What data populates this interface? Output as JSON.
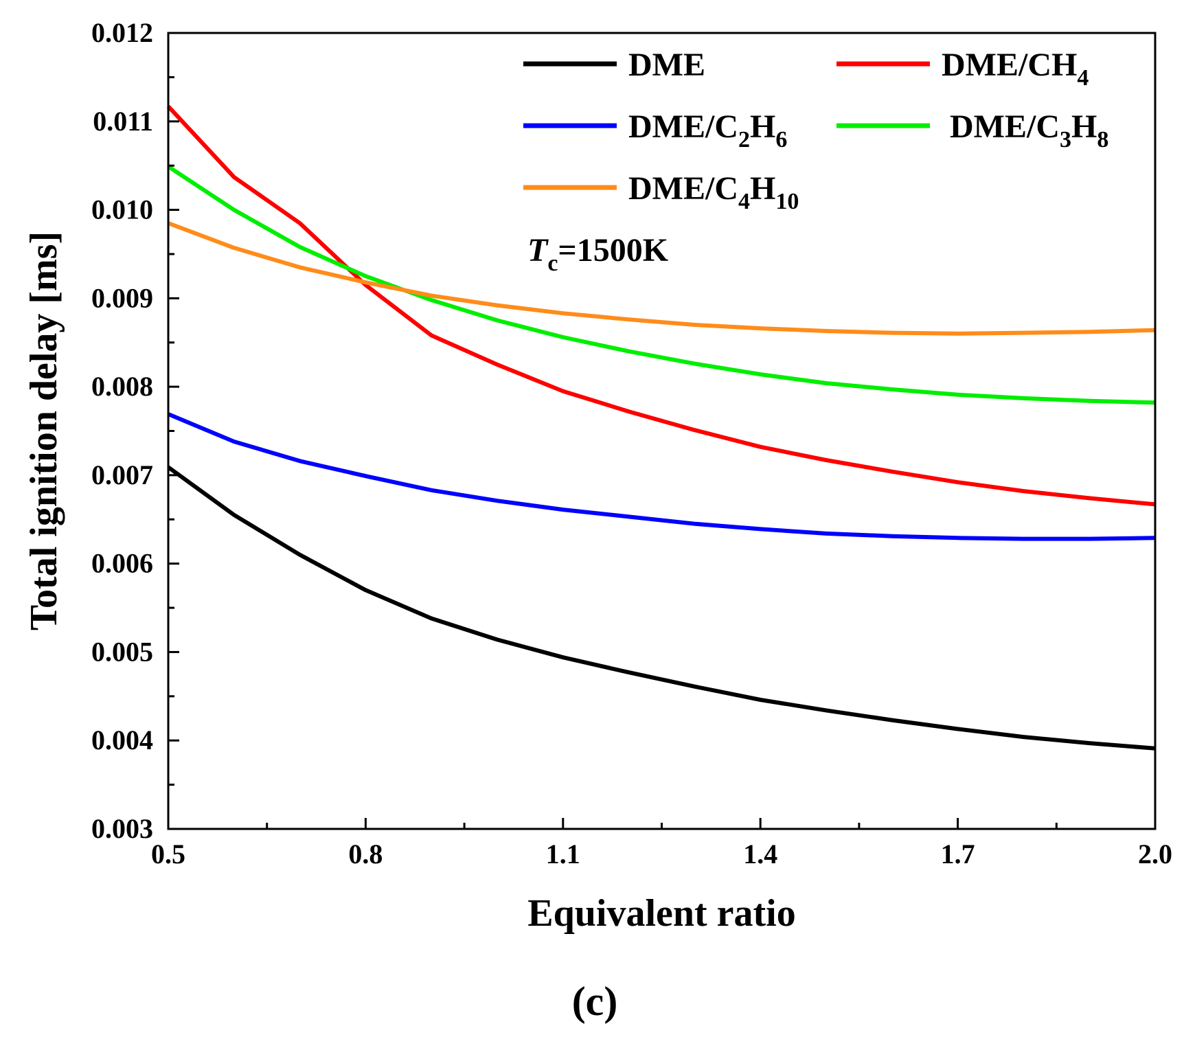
{
  "chart_data": {
    "type": "line",
    "panel_label": "(c)",
    "xlabel": "Equivalent ratio",
    "ylabel": "Total ignition delay [ms]",
    "xlim": [
      0.5,
      2.0
    ],
    "ylim": [
      0.003,
      0.012
    ],
    "x_ticks": [
      0.5,
      0.8,
      1.1,
      1.4,
      1.7,
      2.0
    ],
    "x_tick_labels": [
      "0.5",
      "0.8",
      "1.1",
      "1.4",
      "1.7",
      "2.0"
    ],
    "y_ticks": [
      0.003,
      0.004,
      0.005,
      0.006,
      0.007,
      0.008,
      0.009,
      0.01,
      0.011,
      0.012
    ],
    "y_tick_labels": [
      "0.003",
      "0.004",
      "0.005",
      "0.006",
      "0.007",
      "0.008",
      "0.009",
      "0.010",
      "0.011",
      "0.012"
    ],
    "grid": false,
    "legend_position": "top-right",
    "annotation": {
      "italic": "T",
      "subscript": "c",
      "rest": "=1500K"
    },
    "series": [
      {
        "name": "DME",
        "label": {
          "parts": [
            {
              "t": "DME"
            }
          ]
        },
        "color": "#000000",
        "x": [
          0.5,
          0.6,
          0.7,
          0.8,
          0.9,
          1.0,
          1.1,
          1.2,
          1.3,
          1.4,
          1.5,
          1.6,
          1.7,
          1.8,
          1.9,
          2.0
        ],
        "values": [
          0.00709,
          0.00655,
          0.0061,
          0.0057,
          0.00538,
          0.00514,
          0.00494,
          0.00477,
          0.00461,
          0.00446,
          0.00434,
          0.00423,
          0.00413,
          0.00404,
          0.00397,
          0.00391
        ]
      },
      {
        "name": "DME/CH4",
        "label": {
          "parts": [
            {
              "t": "DME/CH"
            },
            {
              "t": "4",
              "sub": true
            }
          ]
        },
        "color": "#ff0000",
        "x": [
          0.5,
          0.6,
          0.7,
          0.8,
          0.9,
          1.0,
          1.1,
          1.2,
          1.3,
          1.4,
          1.5,
          1.6,
          1.7,
          1.8,
          1.9,
          2.0
        ],
        "values": [
          0.01117,
          0.01037,
          0.00985,
          0.00915,
          0.00858,
          0.00825,
          0.00795,
          0.00772,
          0.00751,
          0.00732,
          0.00717,
          0.00704,
          0.00692,
          0.00682,
          0.00674,
          0.00667
        ]
      },
      {
        "name": "DME/C2H6",
        "label": {
          "parts": [
            {
              "t": "DME/C"
            },
            {
              "t": "2",
              "sub": true
            },
            {
              "t": "H"
            },
            {
              "t": "6",
              "sub": true
            }
          ]
        },
        "color": "#0000ff",
        "x": [
          0.5,
          0.6,
          0.7,
          0.8,
          0.9,
          1.0,
          1.1,
          1.2,
          1.3,
          1.4,
          1.5,
          1.6,
          1.7,
          1.8,
          1.9,
          2.0
        ],
        "values": [
          0.00769,
          0.00738,
          0.00716,
          0.00699,
          0.00683,
          0.00671,
          0.00661,
          0.00653,
          0.00645,
          0.00639,
          0.00634,
          0.00631,
          0.00629,
          0.00628,
          0.00628,
          0.00629
        ]
      },
      {
        "name": "DME/C3H8",
        "label": {
          "parts": [
            {
              "t": "DME/C"
            },
            {
              "t": "3",
              "sub": true
            },
            {
              "t": "H"
            },
            {
              "t": "8",
              "sub": true
            }
          ]
        },
        "color": "#00ee00",
        "x": [
          0.5,
          0.6,
          0.7,
          0.8,
          0.9,
          1.0,
          1.1,
          1.2,
          1.3,
          1.4,
          1.5,
          1.6,
          1.7,
          1.8,
          1.9,
          2.0
        ],
        "values": [
          0.01049,
          0.01,
          0.00958,
          0.00925,
          0.00898,
          0.00875,
          0.00856,
          0.0084,
          0.00826,
          0.00814,
          0.00804,
          0.00797,
          0.00791,
          0.00787,
          0.00784,
          0.00782
        ]
      },
      {
        "name": "DME/C4H10",
        "label": {
          "parts": [
            {
              "t": "DME/C"
            },
            {
              "t": "4",
              "sub": true
            },
            {
              "t": "H"
            },
            {
              "t": "10",
              "sub": true
            }
          ]
        },
        "color": "#ff8c1a",
        "x": [
          0.5,
          0.6,
          0.7,
          0.8,
          0.9,
          1.0,
          1.1,
          1.2,
          1.3,
          1.4,
          1.5,
          1.6,
          1.7,
          1.8,
          1.9,
          2.0
        ],
        "values": [
          0.00985,
          0.00957,
          0.00935,
          0.00918,
          0.00903,
          0.00892,
          0.00883,
          0.00876,
          0.0087,
          0.00866,
          0.00863,
          0.00861,
          0.0086,
          0.00861,
          0.00862,
          0.00864
        ]
      }
    ]
  }
}
